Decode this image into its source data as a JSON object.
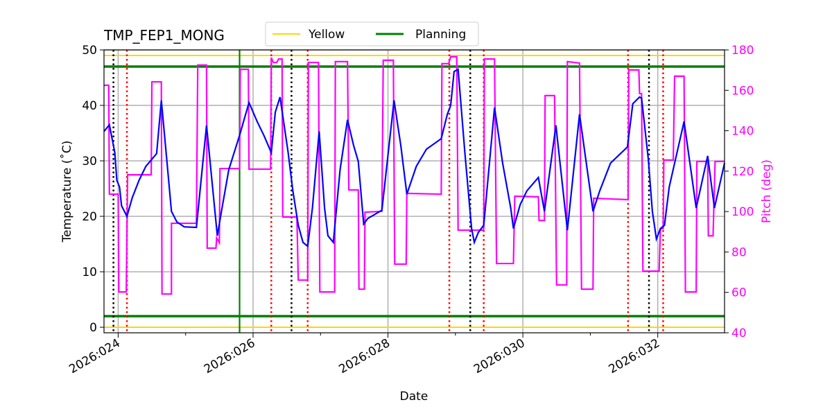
{
  "chart_data": {
    "type": "line",
    "title": "TMP_FEP1_MONG",
    "xlabel": "Date",
    "ylabel": "Temperature ($^\\circ$C)",
    "ylabel_display": "Temperature (˚C)",
    "y2label": "Pitch (deg)",
    "xlim": [
      23.79,
      32.99
    ],
    "ylim": [
      -1,
      50
    ],
    "y2lim": [
      40,
      180
    ],
    "grid": true,
    "legend_placement": "top-center",
    "x_ticks": [
      {
        "value": 24,
        "label": "2026:024"
      },
      {
        "value": 26,
        "label": "2026:026"
      },
      {
        "value": 28,
        "label": "2026:028"
      },
      {
        "value": 30,
        "label": "2026:030"
      },
      {
        "value": 32,
        "label": "2026:032"
      }
    ],
    "x_minor_ticks": [
      25,
      27,
      29,
      31
    ],
    "y_ticks": [
      "0",
      "10",
      "20",
      "30",
      "40",
      "50"
    ],
    "y2_ticks": [
      "40",
      "60",
      "80",
      "100",
      "120",
      "140",
      "160",
      "180"
    ],
    "colors": {
      "temperature": "#0000ff",
      "pitch": "#ff00ff",
      "yellow": "#ffd700",
      "planning": "#008000",
      "grid": "#b0b0b0",
      "black_marker": "#000000",
      "red_marker": "#ff0000"
    },
    "limits": [
      {
        "name": "Yellow",
        "values": [
          49,
          0
        ],
        "color": "#ffd700"
      },
      {
        "name": "Planning",
        "values": [
          47,
          2
        ],
        "color": "#008000"
      }
    ],
    "now_line": 25.8,
    "black_dotted_lines": [
      23.93,
      26.57,
      29.22,
      31.87
    ],
    "red_dotted_lines": [
      24.13,
      26.27,
      26.81,
      28.91,
      29.42,
      31.56,
      32.08
    ],
    "temperature": [
      [
        23.79,
        35.3
      ],
      [
        23.87,
        36.5
      ],
      [
        23.95,
        31.5
      ],
      [
        23.98,
        26.5
      ],
      [
        24.02,
        25.3
      ],
      [
        24.05,
        21.9
      ],
      [
        24.13,
        20.0
      ],
      [
        24.21,
        23.4
      ],
      [
        24.31,
        26.5
      ],
      [
        24.41,
        29.0
      ],
      [
        24.57,
        31.3
      ],
      [
        24.64,
        40.9
      ],
      [
        24.72,
        30.3
      ],
      [
        24.79,
        20.9
      ],
      [
        24.87,
        19.0
      ],
      [
        24.98,
        18.1
      ],
      [
        25.16,
        18.0
      ],
      [
        25.31,
        36.4
      ],
      [
        25.47,
        16.5
      ],
      [
        25.54,
        21.5
      ],
      [
        25.64,
        28.4
      ],
      [
        25.8,
        34.6
      ],
      [
        25.94,
        40.5
      ],
      [
        26.06,
        37.1
      ],
      [
        26.16,
        34.6
      ],
      [
        26.27,
        31.5
      ],
      [
        26.33,
        38.8
      ],
      [
        26.4,
        41.5
      ],
      [
        26.52,
        31.5
      ],
      [
        26.59,
        24.6
      ],
      [
        26.67,
        18.4
      ],
      [
        26.74,
        15.3
      ],
      [
        26.81,
        14.6
      ],
      [
        26.88,
        21.5
      ],
      [
        26.98,
        35.3
      ],
      [
        27.06,
        21.5
      ],
      [
        27.11,
        16.5
      ],
      [
        27.19,
        15.3
      ],
      [
        27.29,
        28.4
      ],
      [
        27.4,
        37.4
      ],
      [
        27.49,
        32.8
      ],
      [
        27.56,
        29.9
      ],
      [
        27.64,
        18.6
      ],
      [
        27.7,
        19.6
      ],
      [
        27.91,
        21.1
      ],
      [
        28.09,
        40.9
      ],
      [
        28.19,
        32.8
      ],
      [
        28.28,
        24.0
      ],
      [
        28.42,
        29.0
      ],
      [
        28.57,
        32.1
      ],
      [
        28.79,
        34.0
      ],
      [
        28.88,
        38.4
      ],
      [
        28.93,
        40.0
      ],
      [
        28.98,
        46.1
      ],
      [
        29.04,
        46.5
      ],
      [
        29.14,
        31.5
      ],
      [
        29.24,
        17.8
      ],
      [
        29.28,
        15.3
      ],
      [
        29.34,
        17.1
      ],
      [
        29.42,
        18.4
      ],
      [
        29.58,
        39.6
      ],
      [
        29.7,
        29.6
      ],
      [
        29.82,
        21.5
      ],
      [
        29.86,
        17.8
      ],
      [
        29.96,
        22.1
      ],
      [
        30.06,
        24.6
      ],
      [
        30.23,
        27.0
      ],
      [
        30.32,
        20.9
      ],
      [
        30.49,
        36.4
      ],
      [
        30.66,
        17.5
      ],
      [
        30.84,
        38.4
      ],
      [
        31.04,
        20.9
      ],
      [
        31.14,
        24.6
      ],
      [
        31.3,
        29.6
      ],
      [
        31.55,
        32.5
      ],
      [
        31.63,
        40.3
      ],
      [
        31.73,
        41.5
      ],
      [
        31.76,
        41.3
      ],
      [
        31.86,
        30.3
      ],
      [
        31.92,
        20.9
      ],
      [
        31.98,
        15.9
      ],
      [
        32.04,
        17.8
      ],
      [
        32.1,
        18.4
      ],
      [
        32.17,
        25.3
      ],
      [
        32.39,
        37.1
      ],
      [
        32.57,
        21.5
      ],
      [
        32.74,
        30.9
      ],
      [
        32.84,
        21.5
      ],
      [
        32.99,
        29.6
      ]
    ],
    "pitch": [
      [
        23.79,
        162.5
      ],
      [
        23.86,
        162.5
      ],
      [
        23.87,
        108.6
      ],
      [
        24.0,
        108.6
      ],
      [
        24.01,
        60.2
      ],
      [
        24.12,
        60.2
      ],
      [
        24.14,
        118.2
      ],
      [
        24.49,
        118.2
      ],
      [
        24.5,
        164.2
      ],
      [
        24.64,
        164.2
      ],
      [
        24.65,
        59.2
      ],
      [
        24.79,
        59.2
      ],
      [
        24.79,
        94.2
      ],
      [
        25.16,
        94.2
      ],
      [
        25.18,
        172.5
      ],
      [
        25.31,
        172.5
      ],
      [
        25.32,
        81.9
      ],
      [
        25.45,
        81.9
      ],
      [
        25.46,
        87.0
      ],
      [
        25.5,
        84.6
      ],
      [
        25.51,
        121.3
      ],
      [
        25.8,
        121.3
      ],
      [
        25.81,
        170.4
      ],
      [
        25.93,
        170.4
      ],
      [
        25.94,
        121.0
      ],
      [
        26.26,
        121.0
      ],
      [
        26.27,
        176.2
      ],
      [
        26.3,
        173.8
      ],
      [
        26.35,
        173.8
      ],
      [
        26.38,
        175.5
      ],
      [
        26.43,
        175.5
      ],
      [
        26.44,
        97.3
      ],
      [
        26.65,
        97.3
      ],
      [
        26.67,
        66.1
      ],
      [
        26.81,
        66.1
      ],
      [
        26.82,
        173.8
      ],
      [
        26.97,
        173.8
      ],
      [
        26.99,
        60.2
      ],
      [
        27.21,
        60.2
      ],
      [
        27.22,
        174.2
      ],
      [
        27.4,
        174.2
      ],
      [
        27.42,
        110.7
      ],
      [
        27.56,
        110.7
      ],
      [
        27.57,
        61.6
      ],
      [
        27.65,
        61.6
      ],
      [
        27.66,
        99.7
      ],
      [
        27.91,
        100.1
      ],
      [
        27.93,
        174.9
      ],
      [
        28.08,
        174.9
      ],
      [
        28.1,
        74.0
      ],
      [
        28.27,
        74.0
      ],
      [
        28.28,
        109.0
      ],
      [
        28.79,
        108.6
      ],
      [
        28.8,
        173.2
      ],
      [
        28.9,
        173.2
      ],
      [
        28.93,
        176.6
      ],
      [
        29.02,
        176.6
      ],
      [
        29.04,
        90.8
      ],
      [
        29.41,
        90.8
      ],
      [
        29.42,
        91.5
      ],
      [
        29.43,
        175.5
      ],
      [
        29.58,
        175.5
      ],
      [
        29.61,
        74.3
      ],
      [
        29.86,
        74.3
      ],
      [
        29.88,
        107.6
      ],
      [
        30.23,
        107.3
      ],
      [
        30.24,
        95.6
      ],
      [
        30.32,
        95.6
      ],
      [
        30.33,
        157.4
      ],
      [
        30.47,
        157.4
      ],
      [
        30.5,
        63.7
      ],
      [
        30.65,
        63.7
      ],
      [
        30.66,
        174.2
      ],
      [
        30.84,
        173.5
      ],
      [
        30.87,
        61.6
      ],
      [
        31.04,
        61.6
      ],
      [
        31.05,
        106.6
      ],
      [
        31.56,
        105.9
      ],
      [
        31.57,
        170.1
      ],
      [
        31.72,
        170.1
      ],
      [
        31.73,
        158.4
      ],
      [
        31.76,
        158.4
      ],
      [
        31.78,
        70.5
      ],
      [
        32.02,
        70.5
      ],
      [
        32.04,
        91.5
      ],
      [
        32.08,
        91.5
      ],
      [
        32.09,
        125.5
      ],
      [
        32.23,
        125.5
      ],
      [
        32.25,
        167.0
      ],
      [
        32.39,
        167.0
      ],
      [
        32.41,
        60.2
      ],
      [
        32.57,
        60.2
      ],
      [
        32.58,
        124.8
      ],
      [
        32.74,
        124.8
      ],
      [
        32.75,
        88.0
      ],
      [
        32.82,
        88.0
      ],
      [
        32.85,
        124.8
      ],
      [
        32.99,
        124.8
      ]
    ]
  }
}
